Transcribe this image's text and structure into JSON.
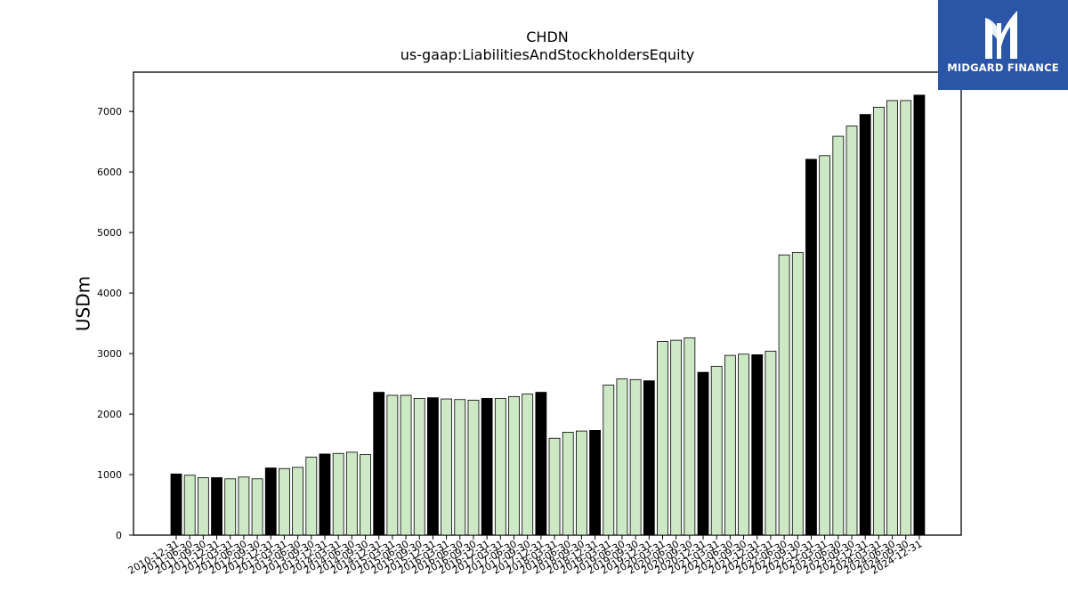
{
  "chart_data": {
    "type": "bar",
    "title": "CHDN",
    "subtitle": "us-gaap:LiabilitiesAndStockholdersEquity",
    "ylabel": "USDm",
    "xlabel": "",
    "ylim": [
      0,
      7650
    ],
    "yticks": [
      0,
      1000,
      2000,
      3000,
      4000,
      5000,
      6000,
      7000
    ],
    "colors": {
      "annual": "#000000",
      "quarterly": "#cce8c4",
      "edge": "#000000"
    },
    "grid": false,
    "categories": [
      "2010-12-31",
      "2011-06-30",
      "2011-09-30",
      "2011-12-31",
      "2012-03-31",
      "2012-06-30",
      "2012-09-30",
      "2012-12-31",
      "2013-03-31",
      "2013-06-30",
      "2013-09-30",
      "2013-12-31",
      "2014-03-31",
      "2014-06-30",
      "2014-09-30",
      "2014-12-31",
      "2015-03-31",
      "2015-06-30",
      "2015-09-30",
      "2015-12-31",
      "2016-03-31",
      "2016-06-30",
      "2016-09-30",
      "2016-12-31",
      "2017-03-31",
      "2017-06-30",
      "2017-09-30",
      "2017-12-31",
      "2018-03-31",
      "2018-06-30",
      "2018-09-30",
      "2018-12-31",
      "2019-03-31",
      "2019-06-30",
      "2019-09-30",
      "2019-12-31",
      "2020-03-31",
      "2020-06-30",
      "2020-09-30",
      "2020-12-31",
      "2021-03-31",
      "2021-06-30",
      "2021-09-30",
      "2021-12-31",
      "2022-03-31",
      "2022-06-30",
      "2022-09-30",
      "2022-12-31",
      "2023-03-31",
      "2023-06-30",
      "2023-09-30",
      "2023-12-31",
      "2024-03-31",
      "2024-06-30",
      "2024-09-30",
      "2024-12-31"
    ],
    "values": [
      1010,
      990,
      950,
      950,
      930,
      960,
      930,
      1110,
      1100,
      1120,
      1290,
      1340,
      1350,
      1370,
      1330,
      2360,
      2310,
      2310,
      2260,
      2270,
      2250,
      2240,
      2230,
      2260,
      2260,
      2290,
      2330,
      2360,
      1600,
      1700,
      1720,
      1730,
      2480,
      2580,
      2570,
      2550,
      3200,
      3220,
      3260,
      2690,
      2790,
      2970,
      2990,
      2980,
      3040,
      4630,
      4670,
      6210,
      6270,
      6590,
      6760,
      6950,
      7070,
      7180,
      7180,
      7270
    ],
    "annual": [
      true,
      false,
      false,
      true,
      false,
      false,
      false,
      true,
      false,
      false,
      false,
      true,
      false,
      false,
      false,
      true,
      false,
      false,
      false,
      true,
      false,
      false,
      false,
      true,
      false,
      false,
      false,
      true,
      false,
      false,
      false,
      true,
      false,
      false,
      false,
      true,
      false,
      false,
      false,
      true,
      false,
      false,
      false,
      true,
      false,
      false,
      false,
      true,
      false,
      false,
      false,
      true,
      false,
      false,
      false,
      true
    ]
  },
  "logo": {
    "text": "MIDGARD FINANCE",
    "icon": "midgard-logo-icon"
  }
}
